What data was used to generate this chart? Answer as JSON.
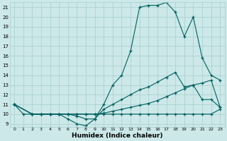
{
  "xlabel": "Humidex (Indice chaleur)",
  "xlim": [
    -0.5,
    23.5
  ],
  "ylim": [
    8.7,
    21.5
  ],
  "yticks": [
    9,
    10,
    11,
    12,
    13,
    14,
    15,
    16,
    17,
    18,
    19,
    20,
    21
  ],
  "xticks": [
    0,
    1,
    2,
    3,
    4,
    5,
    6,
    7,
    8,
    9,
    10,
    11,
    12,
    13,
    14,
    15,
    16,
    17,
    18,
    19,
    20,
    21,
    22,
    23
  ],
  "bg_color": "#cce8e8",
  "line_color": "#006060",
  "grid_color": "#a8cece",
  "line1_x": [
    0,
    1,
    2,
    3,
    4,
    5,
    6,
    7,
    8,
    9,
    10,
    11,
    12,
    13,
    14,
    15,
    16,
    17,
    18,
    19,
    20,
    21,
    22,
    23
  ],
  "line1_y": [
    11,
    10,
    10,
    10,
    10,
    10,
    9.5,
    9.0,
    8.8,
    9.5,
    11.0,
    13.0,
    14.0,
    16.5,
    21.0,
    21.2,
    21.2,
    21.5,
    20.5,
    18.0,
    20.0,
    15.8,
    14.0,
    13.5
  ],
  "line2_x": [
    0,
    2,
    3,
    4,
    5,
    6,
    7,
    8,
    9,
    10,
    11,
    12,
    13,
    14,
    15,
    16,
    17,
    18,
    19,
    20,
    21,
    22,
    23
  ],
  "line2_y": [
    11,
    10,
    10,
    10,
    10,
    10,
    9.8,
    9.5,
    9.5,
    10.5,
    11.0,
    11.5,
    12.0,
    12.5,
    12.8,
    13.3,
    13.8,
    14.3,
    12.8,
    13.0,
    11.5,
    11.5,
    10.7
  ],
  "line3_x": [
    0,
    2,
    3,
    4,
    5,
    6,
    7,
    8,
    9,
    10,
    11,
    12,
    13,
    14,
    15,
    16,
    17,
    18,
    19,
    20,
    21,
    22,
    23
  ],
  "line3_y": [
    11,
    10,
    10,
    10,
    10,
    10,
    10,
    10,
    10,
    10.1,
    10.3,
    10.5,
    10.7,
    10.9,
    11.1,
    11.4,
    11.8,
    12.2,
    12.6,
    13.0,
    13.2,
    13.5,
    10.7
  ],
  "line4_x": [
    0,
    2,
    3,
    4,
    5,
    6,
    7,
    8,
    9,
    10,
    11,
    12,
    13,
    14,
    15,
    16,
    17,
    18,
    19,
    20,
    21,
    22,
    23
  ],
  "line4_y": [
    11,
    10,
    10,
    10,
    10,
    10,
    10,
    10,
    10,
    10.0,
    10.0,
    10.0,
    10.0,
    10.0,
    10.0,
    10.0,
    10.0,
    10.0,
    10.0,
    10.0,
    10.0,
    10.0,
    10.5
  ]
}
